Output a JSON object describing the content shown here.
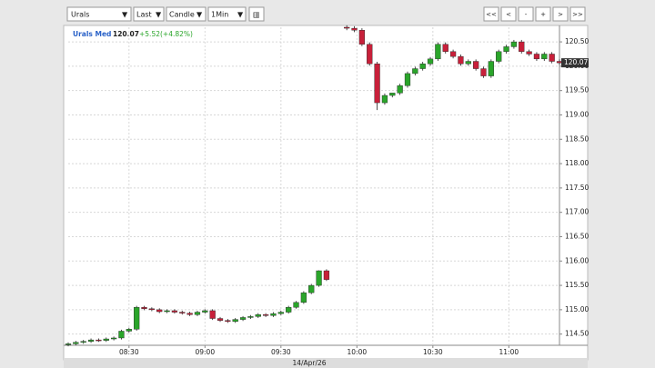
{
  "toolbar": {
    "symbol": "Urals",
    "field": "Last",
    "style": "Candle",
    "interval": "1Min",
    "nav": [
      "<<",
      "<",
      "-",
      "+",
      ">",
      ">>"
    ]
  },
  "chart_data": {
    "type": "candlestick",
    "instrument": "Urals Med",
    "last_price": 120.07,
    "change": "+5.52(+4.82%)",
    "date_label": "14/Apr/26",
    "x": [
      "08:06",
      "08:09",
      "08:12",
      "08:15",
      "08:18",
      "08:21",
      "08:24",
      "08:27",
      "08:30",
      "08:33",
      "08:36",
      "08:39",
      "08:42",
      "08:45",
      "08:48",
      "08:51",
      "08:54",
      "08:57",
      "09:00",
      "09:03",
      "09:06",
      "09:09",
      "09:12",
      "09:15",
      "09:18",
      "09:21",
      "09:24",
      "09:27",
      "09:30",
      "09:33",
      "09:36",
      "09:39",
      "09:42",
      "09:45",
      "09:48",
      "09:56",
      "09:59",
      "10:02",
      "10:05",
      "10:08",
      "10:11",
      "10:14",
      "10:17",
      "10:20",
      "10:23",
      "10:26",
      "10:29",
      "10:32",
      "10:35",
      "10:38",
      "10:41",
      "10:44",
      "10:47",
      "10:50",
      "10:53",
      "10:56",
      "10:59",
      "11:02",
      "11:05",
      "11:08",
      "11:11",
      "11:14",
      "11:17",
      "11:20"
    ],
    "open": [
      114.28,
      114.3,
      114.33,
      114.35,
      114.38,
      114.37,
      114.4,
      114.42,
      114.56,
      114.6,
      115.05,
      115.02,
      115.0,
      114.96,
      114.98,
      114.95,
      114.93,
      114.9,
      114.95,
      114.98,
      114.82,
      114.78,
      114.76,
      114.8,
      114.84,
      114.86,
      114.9,
      114.88,
      114.92,
      114.95,
      115.05,
      115.15,
      115.35,
      115.5,
      115.8,
      120.8,
      120.78,
      120.74,
      120.45,
      120.05,
      119.25,
      119.4,
      119.45,
      119.6,
      119.85,
      119.95,
      120.05,
      120.15,
      120.45,
      120.3,
      120.2,
      120.05,
      120.1,
      119.95,
      119.8,
      120.1,
      120.3,
      120.4,
      120.5,
      120.3,
      120.25,
      120.15,
      120.25,
      120.1
    ],
    "high": [
      114.33,
      114.36,
      114.38,
      114.41,
      114.41,
      114.43,
      114.45,
      114.59,
      114.63,
      115.08,
      115.08,
      115.05,
      115.03,
      115.01,
      115.01,
      114.98,
      114.96,
      114.98,
      115.01,
      115.01,
      114.85,
      114.81,
      114.83,
      114.87,
      114.89,
      114.93,
      114.93,
      114.95,
      114.98,
      115.08,
      115.18,
      115.38,
      115.53,
      115.81,
      115.83,
      120.84,
      120.82,
      120.78,
      120.49,
      120.09,
      119.44,
      119.44,
      119.64,
      119.89,
      119.99,
      120.09,
      120.19,
      120.49,
      120.49,
      120.34,
      120.24,
      120.14,
      120.14,
      119.99,
      120.14,
      120.34,
      120.44,
      120.54,
      120.54,
      120.34,
      120.29,
      120.29,
      120.29,
      120.14
    ],
    "low": [
      114.25,
      114.27,
      114.3,
      114.32,
      114.34,
      114.34,
      114.37,
      114.39,
      114.53,
      114.57,
      114.99,
      114.97,
      114.93,
      114.93,
      114.92,
      114.9,
      114.87,
      114.87,
      114.92,
      114.79,
      114.75,
      114.73,
      114.73,
      114.77,
      114.81,
      114.83,
      114.85,
      114.85,
      114.89,
      114.92,
      115.02,
      115.12,
      115.32,
      115.47,
      115.59,
      120.74,
      120.7,
      120.41,
      120.01,
      119.1,
      119.21,
      119.36,
      119.41,
      119.56,
      119.81,
      119.91,
      120.01,
      120.11,
      120.26,
      120.16,
      120.01,
      120.01,
      119.91,
      119.76,
      119.76,
      120.06,
      120.26,
      120.36,
      120.26,
      120.21,
      120.11,
      120.11,
      120.06,
      120.03
    ],
    "close": [
      114.3,
      114.33,
      114.35,
      114.38,
      114.37,
      114.4,
      114.42,
      114.56,
      114.6,
      115.05,
      115.02,
      115.0,
      114.96,
      114.98,
      114.95,
      114.93,
      114.9,
      114.95,
      114.98,
      114.82,
      114.78,
      114.76,
      114.8,
      114.84,
      114.86,
      114.9,
      114.88,
      114.92,
      114.95,
      115.05,
      115.15,
      115.35,
      115.5,
      115.8,
      115.62,
      120.78,
      120.74,
      120.45,
      120.05,
      119.25,
      119.4,
      119.45,
      119.6,
      119.85,
      119.95,
      120.05,
      120.15,
      120.45,
      120.3,
      120.2,
      120.05,
      120.1,
      119.95,
      119.8,
      120.1,
      120.3,
      120.4,
      120.5,
      120.3,
      120.25,
      120.15,
      120.25,
      120.1,
      120.07
    ],
    "up_color": "#2aa52a",
    "down_color": "#c8203a",
    "xlim": [
      "08:06",
      "11:20"
    ],
    "xticks": [
      "08:30",
      "09:00",
      "09:30",
      "10:00",
      "10:30",
      "11:00"
    ],
    "ylim": [
      114.27,
      120.8
    ],
    "yticks": [
      {
        "value": 114.5,
        "label": "114.50"
      },
      {
        "value": 115,
        "label": "115.00"
      },
      {
        "value": 115.5,
        "label": "115.50"
      },
      {
        "value": 116,
        "label": "116.00"
      },
      {
        "value": 116.5,
        "label": "116.50"
      },
      {
        "value": 117,
        "label": "117.00"
      },
      {
        "value": 117.5,
        "label": "117.50"
      },
      {
        "value": 118,
        "label": "118.00"
      },
      {
        "value": 118.5,
        "label": "118.50"
      },
      {
        "value": 119,
        "label": "119.00"
      },
      {
        "value": 119.5,
        "label": "119.50"
      },
      {
        "value": 120,
        "label": "120.00"
      },
      {
        "value": 120.5,
        "label": "120.50"
      }
    ],
    "grid": true
  }
}
